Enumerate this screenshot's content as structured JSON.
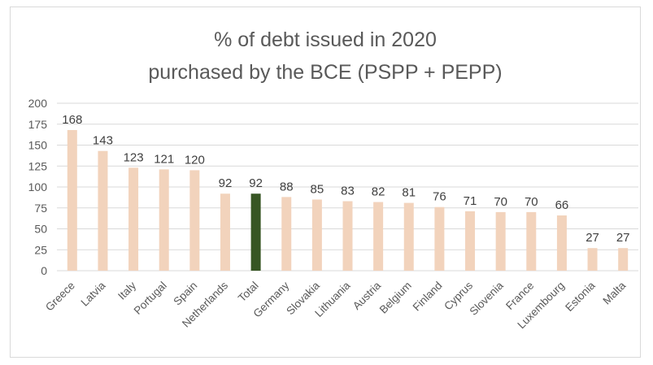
{
  "chart_data": {
    "type": "bar",
    "title_line1": "% of debt issued in 2020",
    "title_line2": "purchased by the BCE (PSPP + PEPP)",
    "categories": [
      "Greece",
      "Latvia",
      "Italy",
      "Portugal",
      "Spain",
      "Netherlands",
      "Total",
      "Germany",
      "Slovakia",
      "Lithuania",
      "Austria",
      "Belgium",
      "Finland",
      "Cyprus",
      "Slovenia",
      "France",
      "Luxembourg",
      "Estonia",
      "Malta"
    ],
    "values": [
      168,
      143,
      123,
      121,
      120,
      92,
      92,
      88,
      85,
      83,
      82,
      81,
      76,
      71,
      70,
      70,
      66,
      27,
      27
    ],
    "highlight_category": "Total",
    "colors": {
      "bar": "#f2d3bc",
      "highlight": "#375623",
      "grid": "#d9d9d9",
      "text": "#595959"
    },
    "ylim": [
      0,
      200
    ],
    "yticks": [
      0,
      25,
      50,
      75,
      100,
      125,
      150,
      175,
      200
    ],
    "grid": true,
    "legend": "none"
  }
}
